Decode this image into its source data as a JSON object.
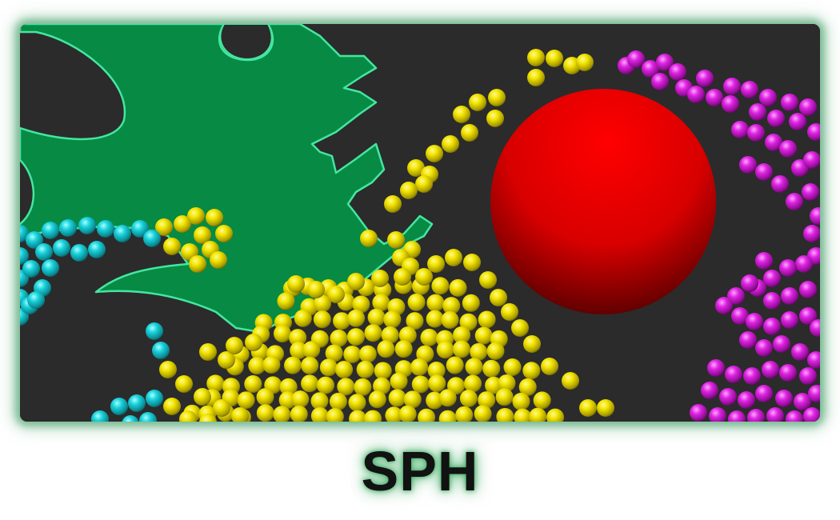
{
  "caption": "SPH",
  "scene": {
    "background_color": "#2b2b2b",
    "frame_glow_color": "#3a9a60",
    "leaf_color": "#068a44",
    "leaf_edge_color": "#44e6a0",
    "sphere_color": "#ff0000",
    "particle_colors": {
      "yellow": "#e8dc00",
      "cyan": "#13c8d2",
      "magenta": "#d41cd8"
    }
  }
}
